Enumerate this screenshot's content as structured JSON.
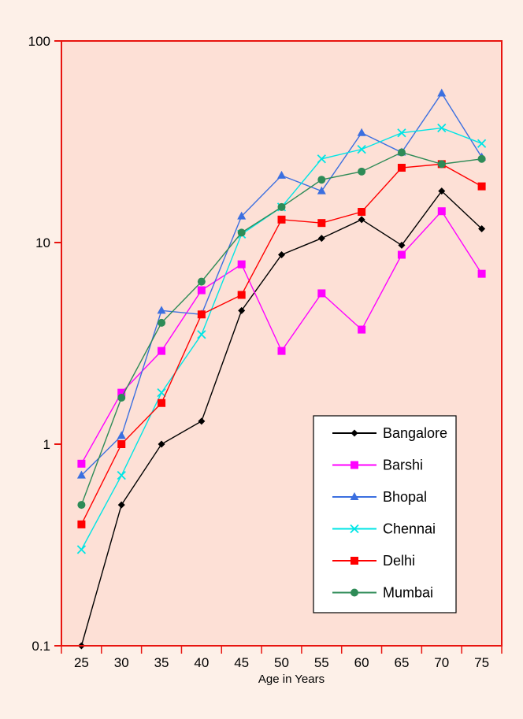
{
  "chart_data": {
    "type": "line",
    "title": "",
    "xlabel": "Age in Years",
    "ylabel": "",
    "yscale": "log",
    "ylim": [
      0.1,
      100
    ],
    "x": [
      25,
      30,
      35,
      40,
      45,
      50,
      55,
      60,
      65,
      70,
      75
    ],
    "x_tick_labels": [
      "25",
      "30",
      "35",
      "40",
      "45",
      "50",
      "55",
      "60",
      "65",
      "70",
      "75"
    ],
    "y_tick_labels": [
      "0.1",
      "1",
      "10",
      "100"
    ],
    "grid": false,
    "legend_position": "bottom-right",
    "series": [
      {
        "name": "Bangalore",
        "color": "#000000",
        "marker": "diamond",
        "values": [
          0.1,
          0.5,
          1.0,
          1.3,
          4.6,
          8.7,
          10.5,
          13.0,
          9.7,
          18.0,
          11.7
        ]
      },
      {
        "name": "Barshi",
        "color": "#ff00ff",
        "marker": "square",
        "values": [
          0.8,
          1.8,
          2.9,
          5.8,
          7.8,
          2.9,
          5.6,
          3.7,
          8.7,
          14.3,
          7.0
        ]
      },
      {
        "name": "Bhopal",
        "color": "#3b6fe0",
        "marker": "triangle",
        "values": [
          0.7,
          1.1,
          4.6,
          4.4,
          13.5,
          21.5,
          18.0,
          35.0,
          28.0,
          55.0,
          26.5
        ]
      },
      {
        "name": "Chennai",
        "color": "#00e5e5",
        "marker": "x",
        "values": [
          0.3,
          0.7,
          1.8,
          3.5,
          11.0,
          15.0,
          26.0,
          29.0,
          35.0,
          37.0,
          31.0
        ]
      },
      {
        "name": "Delhi",
        "color": "#ff0000",
        "marker": "square",
        "values": [
          0.4,
          1.0,
          1.6,
          4.4,
          5.5,
          13.0,
          12.5,
          14.2,
          23.5,
          24.5,
          19.0
        ]
      },
      {
        "name": "Mumbai",
        "color": "#2e8b57",
        "marker": "circle",
        "values": [
          0.5,
          1.7,
          4.0,
          6.4,
          11.2,
          15.0,
          20.5,
          22.5,
          28.0,
          24.5,
          26.0
        ]
      }
    ]
  }
}
